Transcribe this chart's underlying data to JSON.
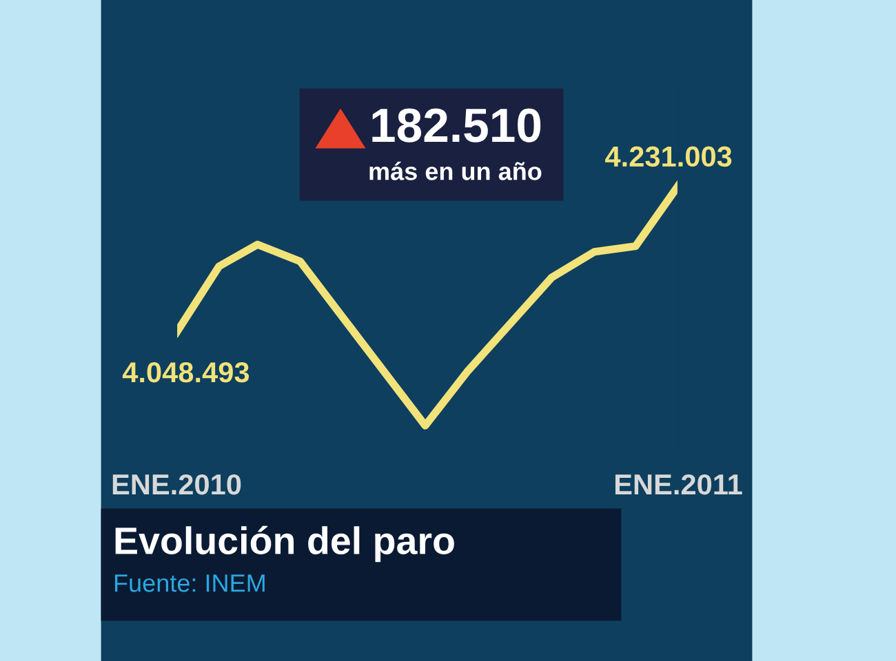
{
  "chart_data": {
    "type": "line",
    "title": "Evolución del paro",
    "annotations": [
      {
        "text": "182.510\nmás en un año"
      },
      "Fuente: INEM"
    ],
    "x": [
      "2010-01",
      "2010-02",
      "2010-03",
      "2010-04",
      "2010-07",
      "2010-08",
      "2010-10",
      "2010-11",
      "2010-12",
      "2011-01"
    ],
    "series": [
      {
        "color": "#f2e27a",
        "values": [
          4048493,
          4131000,
          4158000,
          4137000,
          3933000,
          4001000,
          4117000,
          4149000,
          4156000,
          4231003
        ],
        "value_labels": [
          "4.048.493",
          null,
          null,
          null,
          null,
          null,
          null,
          null,
          null,
          "4.231.003"
        ]
      }
    ],
    "xticks": [
      {
        "value": "2010-01",
        "label": "ENE.2010"
      },
      {
        "value": "2011-01",
        "label": "ENE.2011"
      }
    ],
    "xlim": [
      "2010-01",
      "2011-01"
    ],
    "grid": false,
    "legend": false,
    "marker": "none",
    "line_style": "solid"
  }
}
